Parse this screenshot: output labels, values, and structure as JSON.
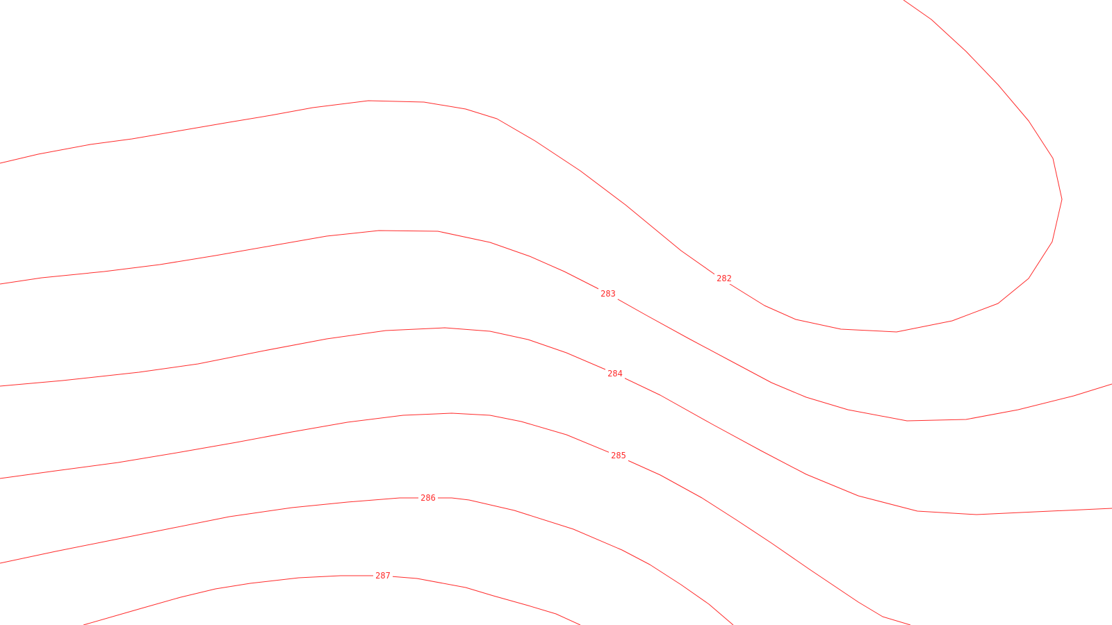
{
  "map": {
    "background_color": "#ffffff",
    "contour_color": "#ff2a2a",
    "contours": [
      {
        "id": "282",
        "label": "282"
      },
      {
        "id": "283",
        "label": "283"
      },
      {
        "id": "284",
        "label": "284"
      },
      {
        "id": "285",
        "label": "285"
      },
      {
        "id": "286",
        "label": "286"
      },
      {
        "id": "287",
        "label": "287"
      }
    ]
  }
}
